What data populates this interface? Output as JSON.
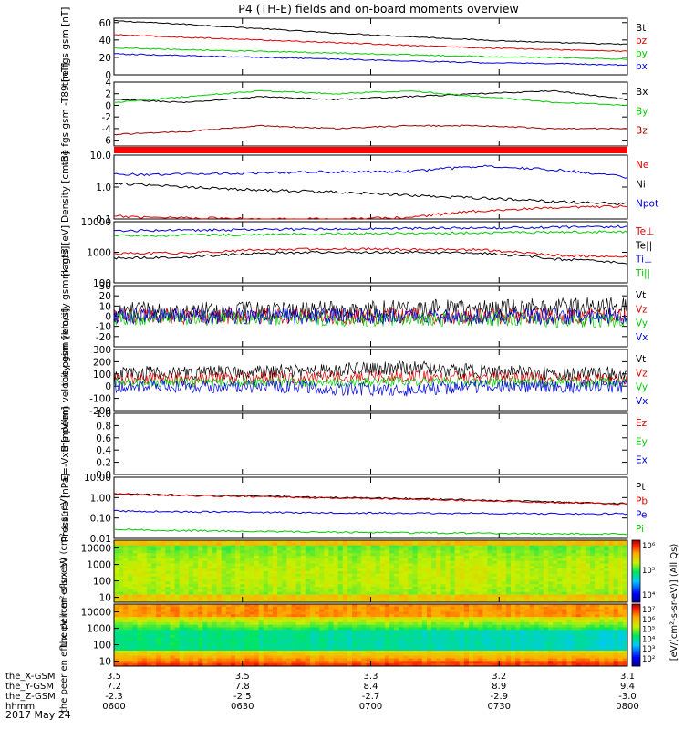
{
  "title": "P4 (TH-E) fields and on-board moments overview",
  "date_label": "2017 May 24",
  "chart_data": {
    "type": "line",
    "title": "P4 (TH-E) fields and on-board moments overview",
    "x": {
      "tick_labels": [
        "0600",
        "0630",
        "0700",
        "0730",
        "0800"
      ],
      "orbit_rows": [
        {
          "label": "the_X-GSM",
          "values": [
            "3.5",
            "3.5",
            "3.3",
            "3.2",
            "3.1"
          ]
        },
        {
          "label": "the_Y-GSM",
          "values": [
            "7.2",
            "7.8",
            "8.4",
            "8.9",
            "9.4"
          ]
        },
        {
          "label": "the_Z-GSM",
          "values": [
            "-2.3",
            "-2.5",
            "-2.7",
            "-2.9",
            "-3.0"
          ]
        },
        {
          "label": "hhmm",
          "values": [
            "0600",
            "0630",
            "0700",
            "0730",
            "0800"
          ]
        }
      ]
    },
    "panels": [
      {
        "id": "fgs",
        "ylabel": "the fgs gsm [nT]",
        "scale": "linear",
        "ylim": [
          0,
          65
        ],
        "ticks": [
          "0",
          "20",
          "40",
          "60"
        ],
        "series": [
          {
            "name": "Bt",
            "color": "#000000",
            "values": [
              62,
              58,
              53,
              48,
              44,
              40,
              37,
              35
            ]
          },
          {
            "name": "bz",
            "color": "#dd0000",
            "values": [
              46,
              43,
              40,
              37,
              34,
              31,
              29,
              27
            ]
          },
          {
            "name": "by",
            "color": "#00cc00",
            "values": [
              31,
              29,
              27,
              25,
              23,
              21,
              20,
              18
            ]
          },
          {
            "name": "bx",
            "color": "#0000dd",
            "values": [
              24,
              22,
              20,
              18,
              16,
              14,
              13,
              11
            ]
          }
        ]
      },
      {
        "id": "fgs-detrended",
        "ylabel": "the fgs gsm -T89 [nT]",
        "scale": "linear",
        "ylim": [
          -7,
          4
        ],
        "ticks": [
          "-6",
          "-4",
          "-2",
          "0",
          "2",
          "4"
        ],
        "series": [
          {
            "name": "Bx",
            "color": "#000000",
            "values": [
              1,
              0.5,
              1.5,
              1,
              1.5,
              2,
              2.5,
              1
            ]
          },
          {
            "name": "By",
            "color": "#00cc00",
            "values": [
              0.5,
              1.5,
              2.5,
              2,
              2.5,
              1.5,
              0.5,
              0
            ]
          },
          {
            "name": "Bz",
            "color": "#990000",
            "values": [
              -5,
              -4.5,
              -3.5,
              -4,
              -3.5,
              -3.5,
              -4,
              -4
            ]
          }
        ]
      },
      {
        "id": "density",
        "ylabel": "Density [cm-3]",
        "scale": "log",
        "ylim": [
          0.1,
          10
        ],
        "ticks": [
          "0.1",
          "1.0",
          "10.0"
        ],
        "series": [
          {
            "name": "Ne",
            "color": "#dd0000",
            "values": [
              0.12,
              0.11,
              0.1,
              0.1,
              0.11,
              0.18,
              0.22,
              0.25
            ]
          },
          {
            "name": "Ni",
            "color": "#000000",
            "values": [
              1.3,
              1.0,
              0.8,
              0.7,
              0.55,
              0.45,
              0.35,
              0.3
            ]
          },
          {
            "name": "Npot",
            "color": "#0000dd",
            "values": [
              2.5,
              2.5,
              2.8,
              3,
              3,
              4.5,
              3.5,
              2
            ]
          }
        ]
      },
      {
        "id": "temperature",
        "ylabel": "magt3 [eV]",
        "scale": "log",
        "ylim": [
          100,
          10000
        ],
        "ticks": [
          "100",
          "1000",
          "10000"
        ],
        "series": [
          {
            "name": "Te⊥",
            "color": "#dd0000",
            "values": [
              900,
              950,
              1200,
              1300,
              1250,
              1200,
              800,
              700
            ]
          },
          {
            "name": "Te||",
            "color": "#000000",
            "values": [
              650,
              700,
              950,
              1000,
              1000,
              950,
              600,
              450
            ]
          },
          {
            "name": "Ti⊥",
            "color": "#0000dd",
            "values": [
              5000,
              5200,
              5500,
              5800,
              6000,
              6200,
              6500,
              7000
            ]
          },
          {
            "name": "Ti||",
            "color": "#00cc00",
            "values": [
              3500,
              3600,
              3800,
              4000,
              4200,
              4300,
              4500,
              4700
            ]
          }
        ]
      },
      {
        "id": "peim-velocity",
        "ylabel": "the peim velocity gsm [km/s]",
        "scale": "linear",
        "ylim": [
          -30,
          30
        ],
        "ticks": [
          "-20",
          "-10",
          "0",
          "10",
          "20",
          "30"
        ],
        "series": [
          {
            "name": "Vt",
            "color": "#000000",
            "values": [
              5,
              5,
              6,
              6,
              7,
              8,
              9,
              10
            ]
          },
          {
            "name": "Vz",
            "color": "#dd0000",
            "values": [
              0,
              0,
              0,
              0,
              0,
              0,
              0,
              0
            ]
          },
          {
            "name": "Vy",
            "color": "#00cc00",
            "values": [
              -2,
              -2,
              -2,
              -3,
              -3,
              -3,
              -4,
              -4
            ]
          },
          {
            "name": "Vx",
            "color": "#0000dd",
            "values": [
              0,
              0,
              0,
              0,
              0,
              0,
              0,
              0
            ]
          }
        ]
      },
      {
        "id": "peem-velocity",
        "ylabel": "the peem velocity gsm [km/s]",
        "scale": "linear",
        "ylim": [
          -200,
          300
        ],
        "ticks": [
          "-200",
          "-100",
          "0",
          "100",
          "200",
          "300"
        ],
        "series": [
          {
            "name": "Vt",
            "color": "#000000",
            "values": [
              100,
              110,
              120,
              130,
              150,
              120,
              100,
              100
            ]
          },
          {
            "name": "Vz",
            "color": "#dd0000",
            "values": [
              60,
              60,
              70,
              70,
              80,
              70,
              60,
              60
            ]
          },
          {
            "name": "Vy",
            "color": "#00cc00",
            "values": [
              30,
              30,
              30,
              30,
              40,
              30,
              30,
              30
            ]
          },
          {
            "name": "Vx",
            "color": "#0000dd",
            "values": [
              0,
              0,
              0,
              -20,
              -30,
              0,
              0,
              0
            ]
          }
        ]
      },
      {
        "id": "e-field",
        "ylabel": "E=-VxB [mV/m]",
        "scale": "linear",
        "ylim": [
          0,
          1
        ],
        "ticks": [
          "0.0",
          "0.2",
          "0.4",
          "0.6",
          "0.8",
          "1.0"
        ],
        "series": [
          {
            "name": "Ez",
            "color": "#dd0000",
            "values": []
          },
          {
            "name": "Ey",
            "color": "#00cc00",
            "values": []
          },
          {
            "name": "Ex",
            "color": "#0000dd",
            "values": []
          }
        ]
      },
      {
        "id": "pressure",
        "ylabel": "Pressure [nPa]",
        "scale": "log",
        "ylim": [
          0.01,
          10
        ],
        "ticks": [
          "0.01",
          "0.10",
          "1.00",
          "10.00"
        ],
        "series": [
          {
            "name": "Pt",
            "color": "#000000",
            "values": [
              1.5,
              1.3,
              1.15,
              1.0,
              0.9,
              0.75,
              0.6,
              0.5
            ]
          },
          {
            "name": "Pb",
            "color": "#dd0000",
            "values": [
              1.45,
              1.25,
              1.1,
              0.95,
              0.85,
              0.7,
              0.58,
              0.48
            ]
          },
          {
            "name": "Pe",
            "color": "#0000dd",
            "values": [
              0.22,
              0.2,
              0.19,
              0.18,
              0.17,
              0.17,
              0.16,
              0.16
            ]
          },
          {
            "name": "Pi",
            "color": "#00cc00",
            "values": [
              0.027,
              0.024,
              0.022,
              0.02,
              0.019,
              0.018,
              0.017,
              0.016
            ]
          }
        ]
      }
    ],
    "spectrograms": [
      {
        "id": "peir",
        "ylabel": "the peir en eflux eV (cm²-s-sr-eV)",
        "ylim": [
          5,
          30000
        ],
        "ticks": [
          "10",
          "100",
          "1000",
          "10000"
        ],
        "colorbar_ticks": [
          "10⁴",
          "10⁵",
          "10⁶"
        ]
      },
      {
        "id": "peer",
        "ylabel": "the peer en eflux eV (cm²-s-sr-eV)",
        "ylim": [
          5,
          30000
        ],
        "ticks": [
          "10",
          "100",
          "1000",
          "10000"
        ],
        "colorbar_ticks": [
          "10²",
          "10³",
          "10⁴",
          "10⁵",
          "10⁶",
          "10⁷"
        ]
      }
    ],
    "colorbar_label": "[eV/(cm²-s-sr-eV)] (All Qs)"
  }
}
